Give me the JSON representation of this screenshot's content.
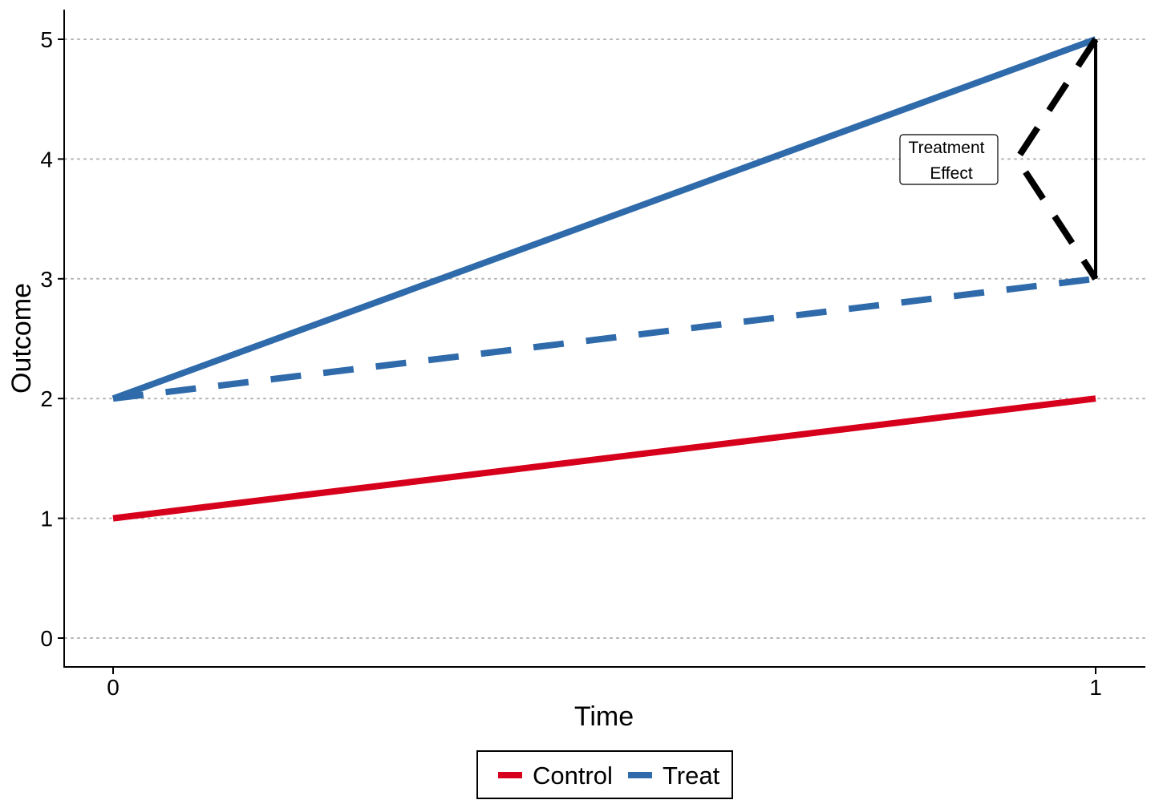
{
  "chart_data": {
    "type": "line",
    "title": "",
    "xlabel": "Time",
    "ylabel": "Outcome",
    "xlim": [
      -0.05,
      1.05
    ],
    "ylim": [
      -0.23,
      5.25
    ],
    "x_ticks": [
      0,
      1
    ],
    "y_ticks": [
      0,
      1,
      2,
      3,
      4,
      5
    ],
    "grid": "horizontal-dotted",
    "legend_position": "bottom",
    "series": [
      {
        "name": "Control",
        "color": "#d7001c",
        "style": "solid",
        "x": [
          0,
          1
        ],
        "y": [
          1,
          2
        ]
      },
      {
        "name": "Treat",
        "color": "#2f6aaa",
        "style": "solid",
        "x": [
          0,
          1
        ],
        "y": [
          2,
          5
        ]
      },
      {
        "color": "#2f6aaa",
        "style": "dashed",
        "x": [
          0,
          1
        ],
        "y": [
          2,
          3
        ]
      }
    ],
    "legend": [
      {
        "label": "Control",
        "color": "#d7001c"
      },
      {
        "label": "Treat",
        "color": "#2f6aaa"
      }
    ],
    "annotation": {
      "label": "Treatment\nEffect",
      "lines": [
        "Treatment",
        "Effect"
      ],
      "bracket_x": 1,
      "bracket_y_range": [
        3,
        5
      ]
    }
  }
}
